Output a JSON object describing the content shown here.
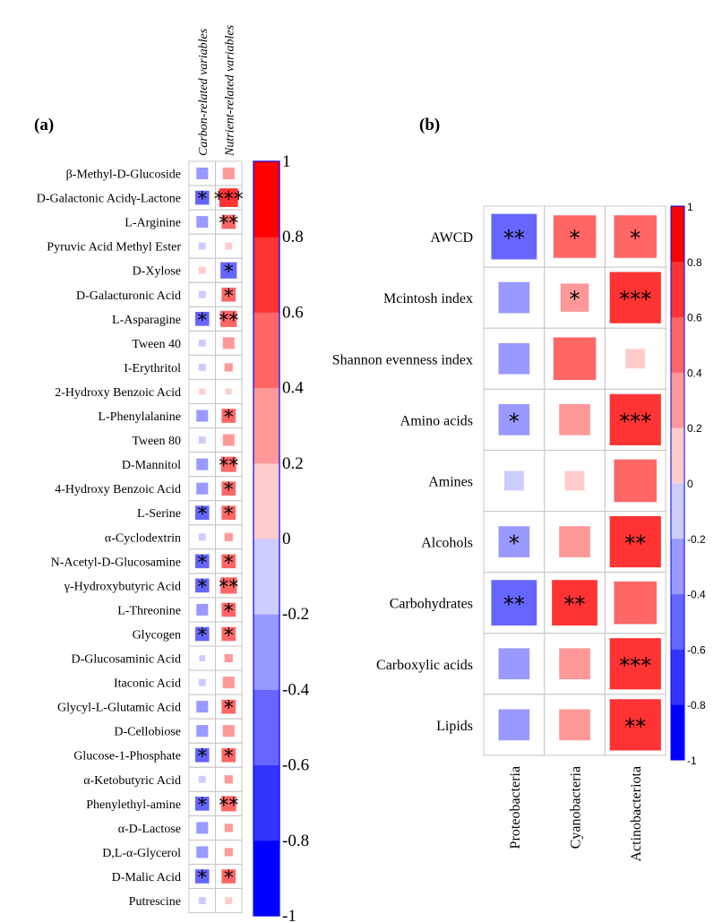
{
  "chart_data": [
    {
      "panel": "(a)",
      "type": "heatmap",
      "title": "",
      "columns": [
        "Carbon-related variables",
        "Nutrient-related variables"
      ],
      "rows": [
        "β-Methyl-D-Glucoside",
        "D-Galactonic Acidγ-Lactone",
        "L-Arginine",
        "Pyruvic Acid Methyl Ester",
        "D-Xylose",
        "D-Galacturonic Acid",
        "L-Asparagine",
        "Tween 40",
        "I-Erythritol",
        "2-Hydroxy Benzoic Acid",
        "L-Phenylalanine",
        "Tween 80",
        "D-Mannitol",
        "4-Hydroxy Benzoic Acid",
        "L-Serine",
        "α-Cyclodextrin",
        "N-Acetyl-D-Glucosamine",
        "γ-Hydroxybutyric Acid",
        "L-Threonine",
        "Glycogen",
        "D-Glucosaminic Acid",
        "Itaconic Acid",
        "Glycyl-L-Glutamic Acid",
        "D-Cellobiose",
        "Glucose-1-Phosphate",
        "α-Ketobutyric Acid",
        "Phenylethyl-amine",
        "α-D-Lactose",
        "D,L-α-Glycerol",
        "D-Malic Acid",
        "Putrescine"
      ],
      "values": [
        [
          -0.35,
          0.35
        ],
        [
          -0.45,
          0.65
        ],
        [
          -0.35,
          0.45
        ],
        [
          -0.15,
          0.15
        ],
        [
          0.15,
          -0.55
        ],
        [
          -0.15,
          0.45
        ],
        [
          -0.45,
          0.55
        ],
        [
          -0.15,
          0.35
        ],
        [
          -0.15,
          0.2
        ],
        [
          0.1,
          0.1
        ],
        [
          -0.35,
          0.45
        ],
        [
          -0.15,
          0.35
        ],
        [
          -0.35,
          0.5
        ],
        [
          -0.35,
          0.45
        ],
        [
          -0.45,
          0.45
        ],
        [
          -0.15,
          0.2
        ],
        [
          -0.45,
          0.45
        ],
        [
          -0.45,
          0.55
        ],
        [
          -0.35,
          0.45
        ],
        [
          -0.45,
          0.45
        ],
        [
          -0.1,
          0.2
        ],
        [
          -0.15,
          0.35
        ],
        [
          -0.35,
          0.45
        ],
        [
          -0.35,
          0.35
        ],
        [
          -0.45,
          0.45
        ],
        [
          -0.15,
          0.2
        ],
        [
          -0.45,
          0.5
        ],
        [
          -0.35,
          0.2
        ],
        [
          -0.35,
          0.2
        ],
        [
          -0.45,
          0.45
        ],
        [
          -0.15,
          0.15
        ]
      ],
      "significance": [
        [
          "",
          ""
        ],
        [
          "*",
          "***"
        ],
        [
          "",
          "**"
        ],
        [
          "",
          ""
        ],
        [
          "",
          "*"
        ],
        [
          "",
          "*"
        ],
        [
          "*",
          "**"
        ],
        [
          "",
          ""
        ],
        [
          "",
          ""
        ],
        [
          "",
          ""
        ],
        [
          "",
          "*"
        ],
        [
          "",
          ""
        ],
        [
          "",
          "**"
        ],
        [
          "",
          "*"
        ],
        [
          "*",
          "*"
        ],
        [
          "",
          ""
        ],
        [
          "*",
          "*"
        ],
        [
          "*",
          "**"
        ],
        [
          "",
          "*"
        ],
        [
          "*",
          "*"
        ],
        [
          "",
          ""
        ],
        [
          "",
          ""
        ],
        [
          "",
          "*"
        ],
        [
          "",
          ""
        ],
        [
          "*",
          "*"
        ],
        [
          "",
          ""
        ],
        [
          "*",
          "**"
        ],
        [
          "",
          ""
        ],
        [
          "",
          ""
        ],
        [
          "*",
          "*"
        ],
        [
          "",
          ""
        ]
      ],
      "colorbar": {
        "range": [
          -1,
          1
        ],
        "ticks": [
          "1",
          "0.8",
          "0.6",
          "0.4",
          "0.2",
          "0",
          "-0.2",
          "-0.4",
          "-0.6",
          "-0.8",
          "-1"
        ]
      }
    },
    {
      "panel": "(b)",
      "type": "heatmap",
      "title": "",
      "columns": [
        "Proteobacteria",
        "Cyanobacteria",
        "Actinobacteriota"
      ],
      "rows": [
        "AWCD",
        "Mcintosh index",
        "Shannon evenness index",
        "Amino acids",
        "Amines",
        "Alcohols",
        "Carbohydrates",
        "Carboxylic acids",
        "Lipids"
      ],
      "values": [
        [
          -0.6,
          0.55,
          0.55
        ],
        [
          -0.35,
          0.3,
          0.7
        ],
        [
          -0.35,
          0.55,
          0.15
        ],
        [
          -0.35,
          0.35,
          0.7
        ],
        [
          -0.15,
          0.15,
          0.55
        ],
        [
          -0.35,
          0.35,
          0.7
        ],
        [
          -0.6,
          0.6,
          0.55
        ],
        [
          -0.35,
          0.35,
          0.7
        ],
        [
          -0.35,
          0.35,
          0.7
        ]
      ],
      "significance": [
        [
          "**",
          "*",
          "*"
        ],
        [
          "",
          "*",
          "***"
        ],
        [
          "",
          "",
          ""
        ],
        [
          "*",
          "",
          "***"
        ],
        [
          "",
          "",
          ""
        ],
        [
          "*",
          "",
          "**"
        ],
        [
          "**",
          "**",
          ""
        ],
        [
          "",
          "",
          "***"
        ],
        [
          "",
          "",
          "**"
        ]
      ],
      "colorbar": {
        "range": [
          -1,
          1
        ],
        "ticks": [
          "1",
          "0.8",
          "0.6",
          "0.4",
          "0.2",
          "0",
          "-0.2",
          "-0.4",
          "-0.6",
          "-0.8",
          "-1"
        ]
      }
    }
  ],
  "colors": {
    "scale": [
      "#0000ff",
      "#3333ff",
      "#6666ff",
      "#9999ff",
      "#ccccff",
      "#ffffff",
      "#ffcccc",
      "#ff9999",
      "#ff6666",
      "#ff3333",
      "#ff0000"
    ],
    "grid": "#c8c8c8",
    "bar_border": "#0000ff"
  }
}
